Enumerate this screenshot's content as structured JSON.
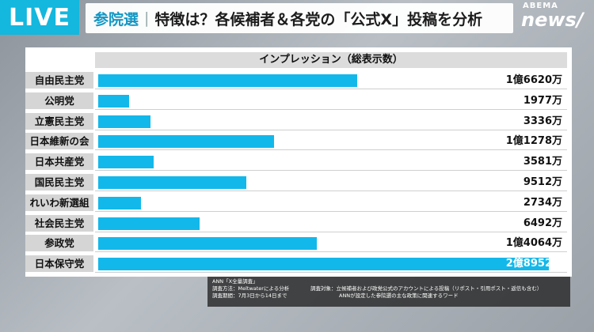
{
  "header": {
    "live_label": "LIVE",
    "tag": "参院選",
    "separator": "|",
    "title": "特徴は？各候補者＆各党の「公式X」投稿を分析"
  },
  "logo": {
    "top": "ABEMA",
    "main": "news/"
  },
  "colors": {
    "accent": "#14b7dd",
    "bar": "#13b8ea",
    "label_bg": "#d5d5d5"
  },
  "chart_data": {
    "type": "bar",
    "orientation": "horizontal",
    "title": "インプレッション（総表示数）",
    "xlabel": "",
    "ylabel": "",
    "xlim": [
      0,
      290000000
    ],
    "grid": false,
    "legend": "none",
    "categories": [
      "自由民主党",
      "公明党",
      "立憲民主党",
      "日本維新の会",
      "日本共産党",
      "国民民主党",
      "れいわ新選組",
      "社会民主党",
      "参政党",
      "日本保守党"
    ],
    "values": [
      166200000,
      19770000,
      33360000,
      112780000,
      35810000,
      95120000,
      27340000,
      64920000,
      140640000,
      289520000
    ],
    "value_labels": [
      "1億6620万",
      "1977万",
      "3336万",
      "1億1278万",
      "3581万",
      "9512万",
      "2734万",
      "6492万",
      "1億4064万",
      "2億8952万"
    ]
  },
  "footnote": {
    "source": "ANN「X全量調査」",
    "method": "調査方法：Meltwaterによる分析",
    "period": "調査期間：7月3日から14日まで",
    "target": "調査対象：立候補者および政党公式のアカウントによる投稿（リポスト・引用ポスト・返信も含む）",
    "keywords": "ANNが設定した参院選の主な政策に関連するワード"
  }
}
